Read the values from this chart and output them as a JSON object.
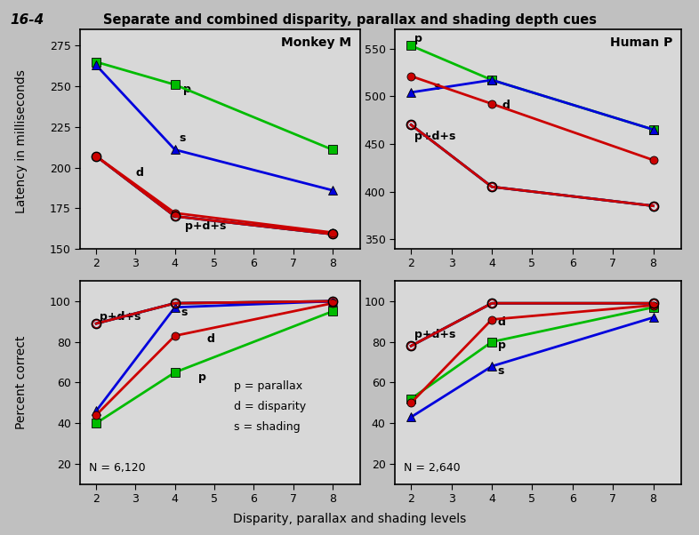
{
  "title": "Separate and combined disparity, parallax and shading depth cues",
  "fig_label": "16-4",
  "xlabel": "Disparity, parallax and shading levels",
  "ylabel_latency": "Latency in milliseconds",
  "ylabel_correct": "Percent correct",
  "x_values": [
    2,
    4,
    8
  ],
  "x_ticks": [
    2,
    3,
    4,
    5,
    6,
    7,
    8
  ],
  "monkey_latency": {
    "title": "Monkey M",
    "p": [
      265,
      251,
      211
    ],
    "d": [
      207,
      172,
      160
    ],
    "s": [
      263,
      211,
      186
    ],
    "pds_r": [
      207,
      170,
      159
    ],
    "pds_g": [
      207,
      170,
      159
    ],
    "pds_b": [
      207,
      170,
      159
    ]
  },
  "human_latency": {
    "title": "Human P",
    "p": [
      553,
      517,
      465
    ],
    "d": [
      521,
      492,
      433
    ],
    "s": [
      504,
      517,
      465
    ],
    "pds_r": [
      470,
      405,
      385
    ],
    "pds_g": [
      470,
      405,
      385
    ],
    "pds_b": [
      470,
      405,
      385
    ]
  },
  "monkey_correct": {
    "p": [
      40,
      65,
      95
    ],
    "d": [
      44,
      83,
      99
    ],
    "s": [
      46,
      97,
      100
    ],
    "pds_r": [
      89,
      99,
      100
    ],
    "pds_g": [
      89,
      99,
      100
    ],
    "pds_b": [
      89,
      99,
      100
    ],
    "n_label": "N = 6,120",
    "legend_text": "p = parallax\nd = disparity\ns = shading"
  },
  "human_correct": {
    "p": [
      52,
      80,
      97
    ],
    "d": [
      50,
      91,
      98
    ],
    "s": [
      43,
      68,
      92
    ],
    "pds_r": [
      78,
      99,
      99
    ],
    "pds_g": [
      78,
      99,
      99
    ],
    "pds_b": [
      78,
      99,
      99
    ],
    "n_label": "N = 2,640"
  },
  "color_p": "#00bb00",
  "color_d": "#cc0000",
  "color_s": "#0000dd",
  "color_pds_r": "#cc0000",
  "color_pds_g": "#00aa00",
  "color_pds_b": "#0000dd",
  "panel_bg": "#d8d8d8",
  "fig_bg": "#c0c0c0",
  "monkey_latency_ylim": [
    150,
    285
  ],
  "monkey_latency_yticks": [
    150,
    175,
    200,
    225,
    250,
    275
  ],
  "human_latency_ylim": [
    340,
    570
  ],
  "human_latency_yticks": [
    350,
    400,
    450,
    500,
    550
  ],
  "correct_ylim": [
    10,
    110
  ],
  "correct_yticks": [
    20,
    40,
    60,
    80,
    100
  ]
}
